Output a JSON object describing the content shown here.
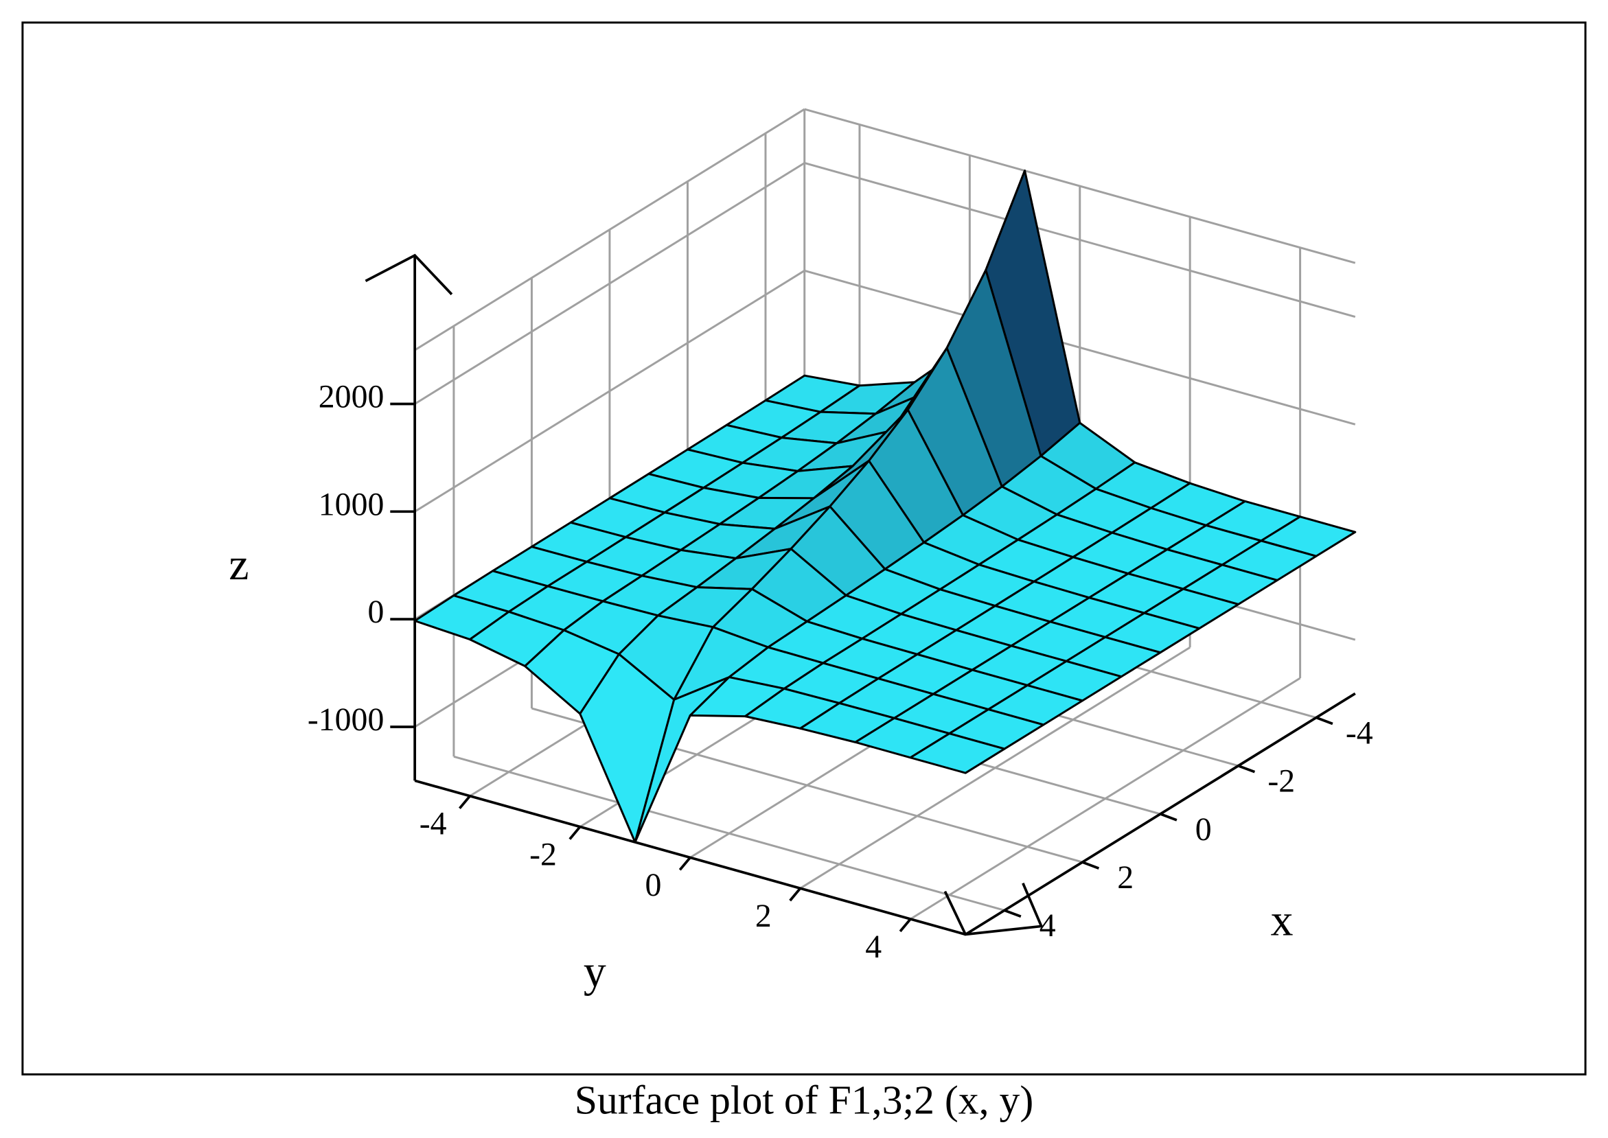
{
  "chart_data": {
    "type": "surface",
    "title": "Surface plot of F1,3;2 (x, y)",
    "x_label": "x",
    "y_label": "y",
    "z_label": "z",
    "x": [
      -5,
      -4,
      -3,
      -2,
      -1,
      0,
      1,
      2,
      3,
      4,
      5
    ],
    "y": [
      -5,
      -4,
      -3,
      -2,
      -1,
      0,
      1,
      2,
      3,
      4,
      5
    ],
    "z": [
      [
        25,
        75,
        250,
        750,
        2500,
        300,
        75,
        25,
        0,
        0,
        0
      ],
      [
        18,
        54,
        180,
        540,
        1800,
        216,
        54,
        18,
        0,
        0,
        0
      ],
      [
        13,
        39,
        130,
        390,
        1300,
        156,
        39,
        13,
        0,
        0,
        0
      ],
      [
        10,
        29,
        95,
        285,
        950,
        114,
        29,
        10,
        0,
        0,
        0
      ],
      [
        7,
        21,
        70,
        210,
        700,
        84,
        21,
        7,
        0,
        0,
        0
      ],
      [
        5,
        15,
        50,
        150,
        500,
        60,
        15,
        5,
        0,
        0,
        0
      ],
      [
        3,
        10,
        33,
        99,
        330,
        40,
        10,
        3,
        0,
        0,
        0
      ],
      [
        2,
        5,
        18,
        54,
        180,
        22,
        5,
        2,
        0,
        0,
        0
      ],
      [
        1,
        2,
        5,
        15,
        50,
        6,
        2,
        1,
        0,
        0,
        0
      ],
      [
        -4,
        -12,
        -40,
        -120,
        -400,
        -48,
        -12,
        -4,
        0,
        0,
        0
      ],
      [
        -15,
        -45,
        -150,
        -450,
        -1500,
        -180,
        -45,
        -15,
        0,
        0,
        0
      ]
    ],
    "xlim": [
      -5,
      5
    ],
    "ylim": [
      -5,
      5
    ],
    "zlim": [
      -1500,
      2500
    ],
    "xticks": [
      -4,
      -2,
      0,
      2,
      4
    ],
    "yticks": [
      -4,
      -2,
      0,
      2,
      4
    ],
    "zticks": [
      -1000,
      0,
      1000,
      2000
    ],
    "grid": true,
    "colors": [
      "#2ee6f6",
      "#0a2450"
    ]
  }
}
